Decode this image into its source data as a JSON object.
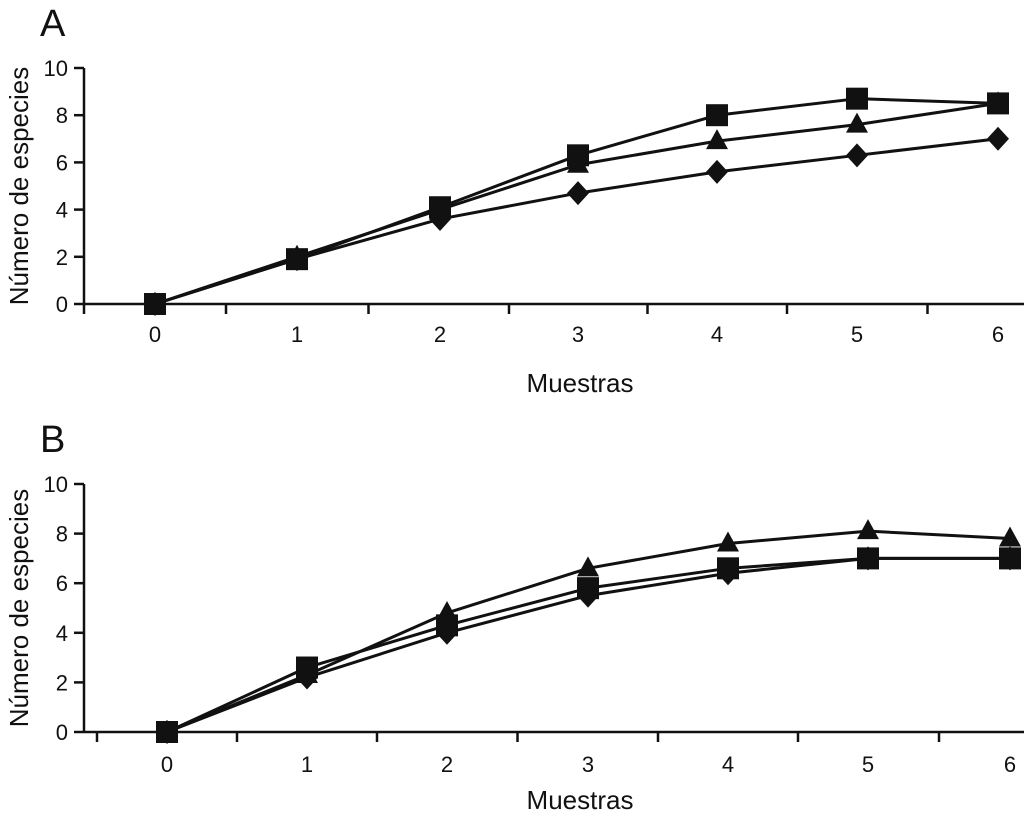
{
  "chart_data": [
    {
      "type": "line",
      "panel_label": "A",
      "xlabel": "Muestras",
      "ylabel": "Número de especies",
      "x": [
        0,
        1,
        2,
        3,
        4,
        5,
        6
      ],
      "xticks": [
        "0",
        "1",
        "2",
        "3",
        "4",
        "5",
        "6"
      ],
      "ylim": [
        0,
        10
      ],
      "yticks": [
        "0",
        "2",
        "4",
        "6",
        "8",
        "10"
      ],
      "grid": false,
      "legend": "none",
      "series": [
        {
          "marker": "diamond",
          "values": [
            0,
            1.9,
            3.6,
            4.7,
            5.6,
            6.3,
            7.0
          ]
        },
        {
          "marker": "triangle",
          "values": [
            0,
            2.0,
            4.0,
            5.9,
            6.9,
            7.6,
            8.5
          ]
        },
        {
          "marker": "square",
          "values": [
            0,
            1.9,
            4.1,
            6.3,
            8.0,
            8.7,
            8.5
          ]
        }
      ]
    },
    {
      "type": "line",
      "panel_label": "B",
      "xlabel": "Muestras",
      "ylabel": "Número de especies",
      "x": [
        0,
        1,
        2,
        3,
        4,
        5,
        6
      ],
      "xticks": [
        "0",
        "1",
        "2",
        "3",
        "4",
        "5",
        "6"
      ],
      "ylim": [
        0,
        10
      ],
      "yticks": [
        "0",
        "2",
        "4",
        "6",
        "8",
        "10"
      ],
      "grid": false,
      "legend": "none",
      "series": [
        {
          "marker": "diamond",
          "values": [
            0,
            2.2,
            4.0,
            5.5,
            6.4,
            7.0,
            7.0
          ]
        },
        {
          "marker": "triangle",
          "values": [
            0,
            2.3,
            4.8,
            6.6,
            7.6,
            8.1,
            7.8
          ]
        },
        {
          "marker": "square",
          "values": [
            0,
            2.6,
            4.3,
            5.8,
            6.6,
            7.0,
            7.0
          ]
        }
      ]
    }
  ]
}
